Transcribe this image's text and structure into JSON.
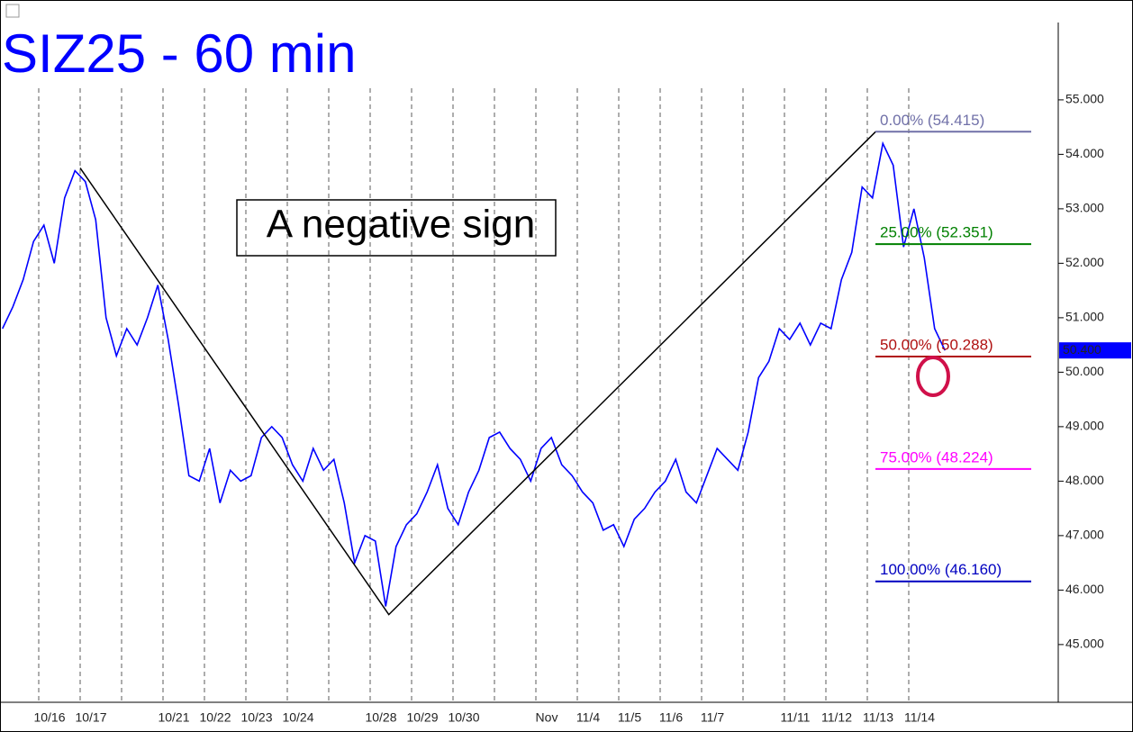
{
  "chart_data": {
    "type": "line",
    "title": "SIZ25 - 60 min",
    "annotation": "A negative sign",
    "categories": [
      null,
      "10/16",
      "10/17",
      null,
      "10/21",
      "10/22",
      "10/23",
      "10/24",
      null,
      "10/28",
      "10/29",
      "10/30",
      null,
      "Nov",
      "11/4",
      "11/5",
      "11/6",
      "11/7",
      null,
      "11/11",
      "11/12",
      "11/13",
      "11/14"
    ],
    "series": [
      {
        "color": "#0000ff",
        "values": [
          [
            50.8,
            51.2,
            51.7,
            52.4
          ],
          [
            52.7,
            52.0,
            53.2,
            53.7
          ],
          [
            53.5,
            52.8,
            51.0,
            50.3
          ],
          [
            50.8,
            50.5,
            51.0,
            51.6
          ],
          [
            50.6,
            49.4,
            48.1,
            48.0
          ],
          [
            48.6,
            47.6,
            48.2,
            48.0
          ],
          [
            48.1,
            48.8,
            49.0,
            48.8
          ],
          [
            48.3,
            48.0,
            48.6,
            48.2
          ],
          [
            48.4,
            47.6,
            46.5,
            47.0
          ],
          [
            46.9,
            45.7,
            46.8,
            47.2
          ],
          [
            47.4,
            47.8,
            48.3,
            47.5
          ],
          [
            47.2,
            47.8,
            48.2,
            48.8
          ],
          [
            48.9,
            48.6,
            48.4,
            48.0
          ],
          [
            48.6,
            48.8,
            48.3,
            48.1
          ],
          [
            47.8,
            47.6,
            47.1,
            47.2
          ],
          [
            46.8,
            47.3,
            47.5,
            47.8
          ],
          [
            48.0,
            48.4,
            47.8,
            47.6
          ],
          [
            48.1,
            48.6,
            48.4,
            48.2
          ],
          [
            48.9,
            49.9,
            50.2,
            50.8
          ],
          [
            50.6,
            50.9,
            50.5,
            50.9
          ],
          [
            50.8,
            51.7,
            52.2,
            53.4
          ],
          [
            53.2,
            54.2,
            53.8,
            52.3
          ],
          [
            53.0,
            52.1,
            50.8,
            50.4
          ]
        ]
      }
    ],
    "swing": {
      "x": [
        2.0,
        9.45,
        21.2
      ],
      "values": [
        53.75,
        45.55,
        54.415
      ],
      "color": "#000000"
    },
    "fib_levels": [
      {
        "label": "0.00% (54.415)",
        "value": 54.415,
        "color": "#7070a8"
      },
      {
        "label": "25.00% (52.351)",
        "value": 52.351,
        "color": "#008000"
      },
      {
        "label": "50.00% (50.288)",
        "value": 50.288,
        "color": "#b01010"
      },
      {
        "label": "75.00% (48.224)",
        "value": 48.224,
        "color": "#ff00ff"
      },
      {
        "label": "100.00% (46.160)",
        "value": 46.16,
        "color": "#0000c0"
      }
    ],
    "last_price": {
      "value": 50.4,
      "label": "50.400"
    },
    "ylim": [
      43.94,
      56.42
    ],
    "yticks": [
      {
        "value": 45,
        "label": "45.000"
      },
      {
        "value": 46,
        "label": "46.000"
      },
      {
        "value": 47,
        "label": "47.000"
      },
      {
        "value": 48,
        "label": "48.000"
      },
      {
        "value": 49,
        "label": "49.000"
      },
      {
        "value": 50,
        "label": "50.000"
      },
      {
        "value": 51,
        "label": "51.000"
      },
      {
        "value": 52,
        "label": "52.000"
      },
      {
        "value": 53,
        "label": "53.000"
      },
      {
        "value": 54,
        "label": "54.000"
      },
      {
        "value": 55,
        "label": "55.000"
      }
    ]
  }
}
